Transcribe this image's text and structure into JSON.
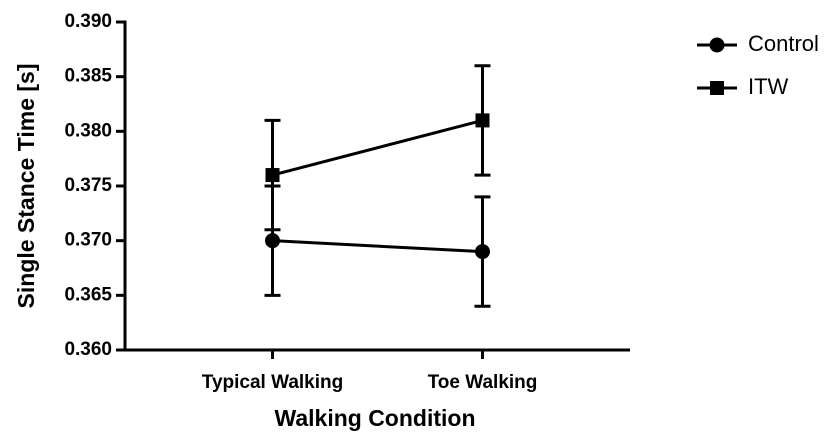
{
  "chart_data": {
    "type": "line",
    "xlabel": "Walking Condition",
    "ylabel": "Single Stance Time [s]",
    "categories": [
      "Typical Walking",
      "Toe Walking"
    ],
    "series": [
      {
        "name": "Control",
        "color": "#000000",
        "marker": "circle",
        "values": [
          0.37,
          0.369
        ],
        "errors": [
          0.005,
          0.005
        ]
      },
      {
        "name": "ITW",
        "color": "#000000",
        "marker": "square",
        "values": [
          0.376,
          0.381
        ],
        "errors": [
          0.005,
          0.005
        ]
      }
    ],
    "ylim": [
      0.36,
      0.39
    ],
    "yticks": [
      {
        "value": 0.36,
        "label": "0.360"
      },
      0.365,
      {
        "value": 0.37,
        "label": "0.370"
      },
      0.375,
      {
        "value": 0.38,
        "label": "0.380"
      },
      0.385,
      {
        "value": 0.39,
        "label": "0.390"
      }
    ],
    "grid": false,
    "legend": "upper right"
  }
}
